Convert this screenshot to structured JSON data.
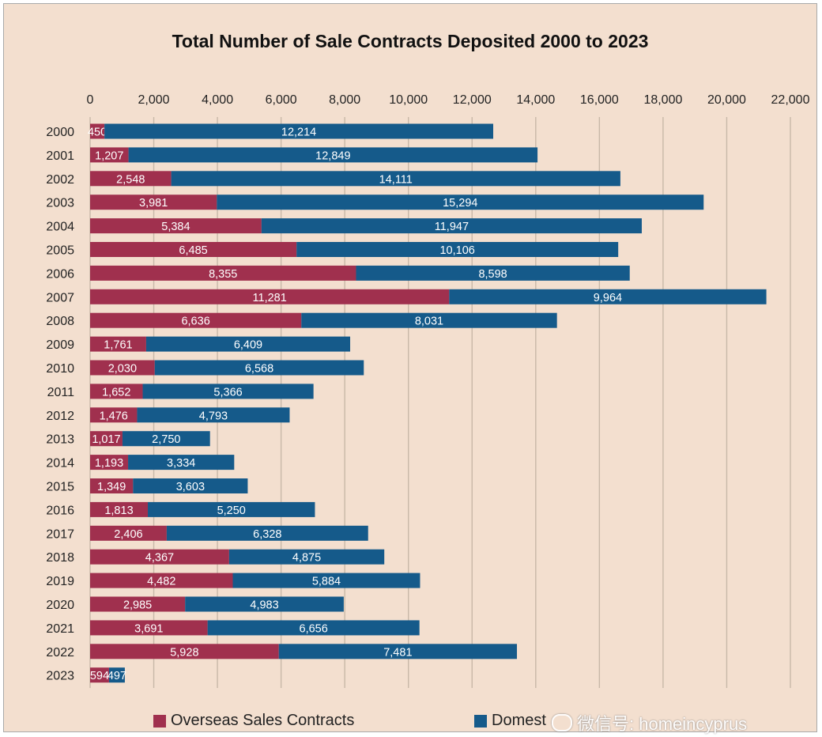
{
  "chart_data": {
    "type": "bar",
    "orientation": "horizontal",
    "stacked": true,
    "title": "Total Number of Sale Contracts Deposited 2000 to 2023",
    "xlabel": "",
    "ylabel": "",
    "xlim": [
      0,
      22000
    ],
    "x_ticks": [
      0,
      2000,
      4000,
      6000,
      8000,
      10000,
      12000,
      14000,
      16000,
      18000,
      20000,
      22000
    ],
    "x_tick_labels": [
      "0",
      "2,000",
      "4,000",
      "6,000",
      "8,000",
      "10,000",
      "12,000",
      "14,000",
      "16,000",
      "18,000",
      "20,000",
      "22,000"
    ],
    "x_axis_position": "top",
    "grid": "vertical",
    "legend_position": "bottom",
    "categories": [
      "2000",
      "2001",
      "2002",
      "2003",
      "2004",
      "2005",
      "2006",
      "2007",
      "2008",
      "2009",
      "2010",
      "2011",
      "2012",
      "2013",
      "2014",
      "2015",
      "2016",
      "2017",
      "2018",
      "2019",
      "2020",
      "2021",
      "2022",
      "2023"
    ],
    "series": [
      {
        "name": "Overseas Sales Contracts",
        "color": "#a0304e",
        "values": [
          450,
          1207,
          2548,
          3981,
          5384,
          6485,
          8355,
          11281,
          6636,
          1761,
          2030,
          1652,
          1476,
          1017,
          1193,
          1349,
          1813,
          2406,
          4367,
          4482,
          2985,
          3691,
          5928,
          594
        ],
        "labels": [
          "450",
          "1,207",
          "2,548",
          "3,981",
          "5,384",
          "6,485",
          "8,355",
          "11,281",
          "6,636",
          "1,761",
          "2,030",
          "1,652",
          "1,476",
          "1,017",
          "1,193",
          "1,349",
          "1,813",
          "2,406",
          "4,367",
          "4,482",
          "2,985",
          "3,691",
          "5,928",
          "594"
        ]
      },
      {
        "name": "Domest",
        "color": "#155a8a",
        "values": [
          12214,
          12849,
          14111,
          15294,
          11947,
          10106,
          8598,
          9964,
          8031,
          6409,
          6568,
          5366,
          4793,
          2750,
          3334,
          3603,
          5250,
          6328,
          4875,
          5884,
          4983,
          6656,
          7481,
          497
        ],
        "labels": [
          "12,214",
          "12,849",
          "14,111",
          "15,294",
          "11,947",
          "10,106",
          "8,598",
          "9,964",
          "8,031",
          "6,409",
          "6,568",
          "5,366",
          "4,793",
          "2,750",
          "3,334",
          "3,603",
          "5,250",
          "6,328",
          "4,875",
          "5,884",
          "4,983",
          "6,656",
          "7,481",
          "497"
        ]
      }
    ]
  },
  "watermark": {
    "text": "微信号: homeincyprus"
  },
  "colors": {
    "background": "#f3dfcf",
    "grid": "#c8b8a8"
  }
}
